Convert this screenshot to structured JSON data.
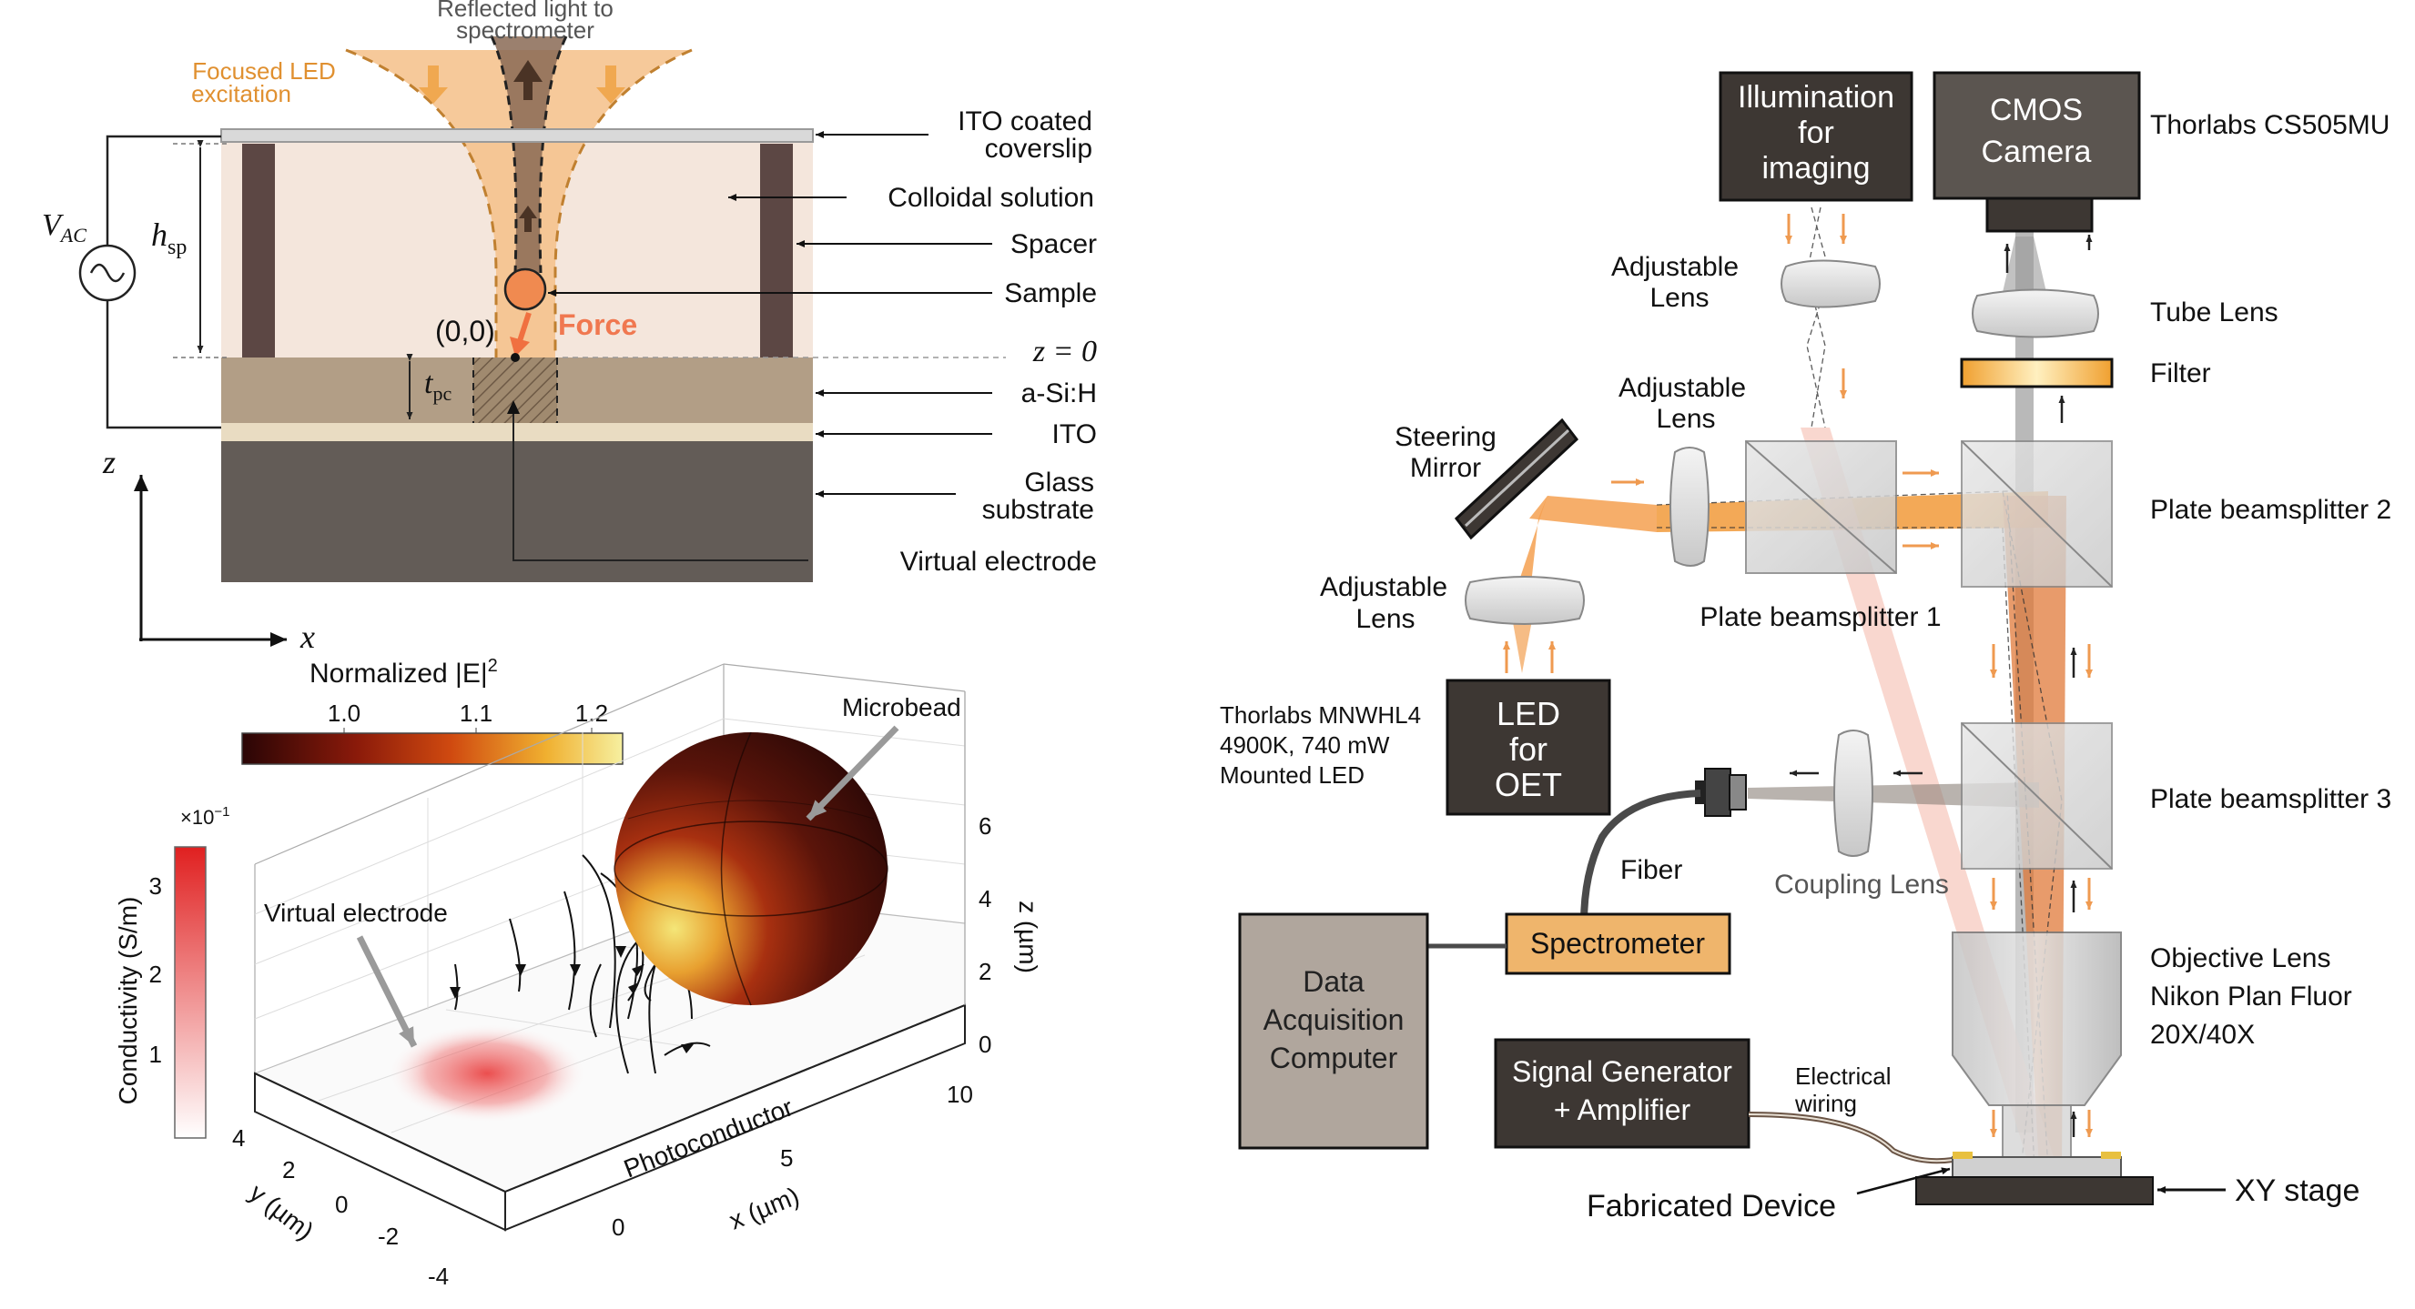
{
  "panel_a": {
    "beam_label_line1": "Reflected light to",
    "beam_label_line2": "spectrometer",
    "led_label_line1": "Focused LED",
    "led_label_line2": "excitation",
    "ito_coverslip_line1": "ITO coated",
    "ito_coverslip_line2": "coverslip",
    "colloidal": "Colloidal solution",
    "spacer": "Spacer",
    "sample": "Sample",
    "z0": "z = 0",
    "asih": "a-Si:H",
    "ito": "ITO",
    "glass_line1": "Glass",
    "glass_line2": "substrate",
    "virtual_electrode": "Virtual electrode",
    "force": "Force",
    "origin": "(0,0)",
    "vac": "V",
    "vac_sub": "AC",
    "hsp": "h",
    "hsp_sub": "sp",
    "tpc": "t",
    "tpc_sub": "pc",
    "axis_z": "z",
    "axis_x": "x"
  },
  "panel_b": {
    "colorbar_title": "Normalized |E|",
    "colorbar_title_sup": "2",
    "colorbar_ticks": [
      "1.0",
      "1.1",
      "1.2"
    ],
    "cond_scale": "×10",
    "cond_scale_sup": "−1",
    "cond_label": "Conductivity (S/m)",
    "cond_ticks": [
      "3",
      "2",
      "1"
    ],
    "microbead": "Microbead",
    "virtual_electrode": "Virtual electrode",
    "photoconductor": "Photoconductor",
    "z_ticks": [
      "6",
      "4",
      "2",
      "0"
    ],
    "z_label": "z (µm)",
    "x_ticks": [
      "0",
      "5",
      "10"
    ],
    "x_label": "x (µm)",
    "y_ticks": [
      "4",
      "2",
      "0",
      "-2",
      "-4"
    ],
    "y_label": "y (µm)",
    "colors": {
      "bead_dark": "#3a0c08",
      "bead_hot": "#f0e070",
      "conductivity": "#e02020"
    }
  },
  "panel_c": {
    "illum_line1": "Illumination",
    "illum_line2": "for",
    "illum_line3": "imaging",
    "cmos_line1": "CMOS",
    "cmos_line2": "Camera",
    "camera_model": "Thorlabs CS505MU",
    "adj_lens_top_line1": "Adjustable",
    "adj_lens_top_line2": "Lens",
    "tube_lens": "Tube Lens",
    "filter": "Filter",
    "adj_lens_mid_line1": "Adjustable",
    "adj_lens_mid_line2": "Lens",
    "steering_line1": "Steering",
    "steering_line2": "Mirror",
    "bs1": "Plate beamsplitter 1",
    "bs2": "Plate beamsplitter 2",
    "bs3": "Plate beamsplitter 3",
    "adj_lens_low_line1": "Adjustable",
    "adj_lens_low_line2": "Lens",
    "led_model_line1": "Thorlabs MNWHL4",
    "led_model_line2": "4900K, 740 mW",
    "led_model_line3": "Mounted LED",
    "led_box_line1": "LED",
    "led_box_line2": "for",
    "led_box_line3": "OET",
    "fiber": "Fiber",
    "coupling_lens": "Coupling Lens",
    "spectrometer": "Spectrometer",
    "daq_line1": "Data",
    "daq_line2": "Acquisition",
    "daq_line3": "Computer",
    "objective_line1": "Objective Lens",
    "objective_line2": "Nikon Plan Fluor",
    "objective_line3": "20X/40X",
    "siggen_line1": "Signal Generator",
    "siggen_line2": "+ Amplifier",
    "wiring_line1": "Electrical",
    "wiring_line2": "wiring",
    "device": "Fabricated Device",
    "stage": "XY stage",
    "colors": {
      "beam_orange": "#f29a3a",
      "box_dark": "#3d3733",
      "spectrometer_fill": "#efb56c",
      "daq_fill": "#b0a69d"
    }
  }
}
